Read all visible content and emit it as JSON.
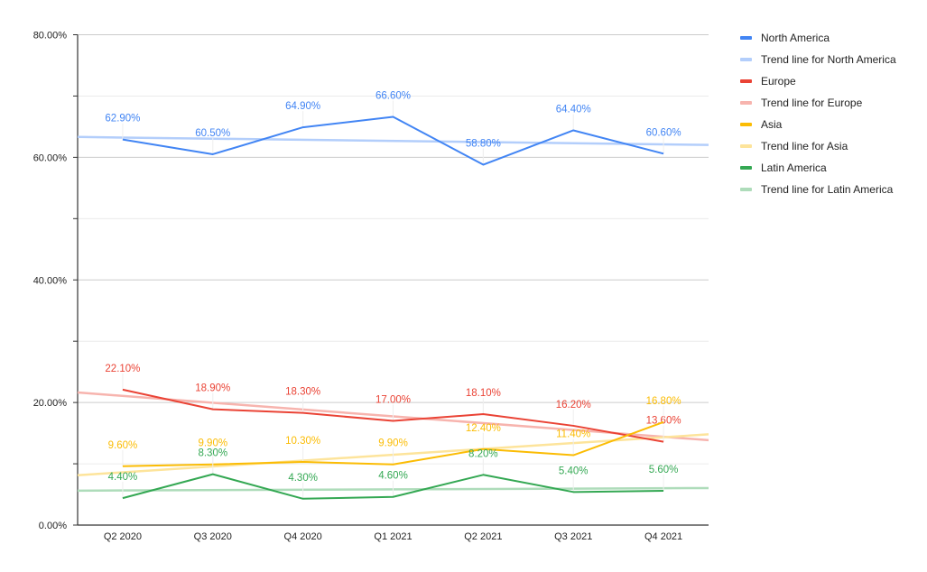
{
  "chart_data": {
    "type": "line",
    "title": "",
    "xlabel": "",
    "ylabel": "",
    "categories": [
      "Q2 2020",
      "Q3 2020",
      "Q4 2020",
      "Q1 2021",
      "Q2 2021",
      "Q3 2021",
      "Q4 2021"
    ],
    "ylim": [
      0,
      80
    ],
    "y_ticks": [
      0,
      20,
      40,
      60,
      80
    ],
    "y_tick_labels": [
      "0.00%",
      "20.00%",
      "40.00%",
      "60.00%",
      "80.00%"
    ],
    "minor_gridlines": [
      10,
      30,
      50,
      70
    ],
    "grid": true,
    "legend_position": "right",
    "data_labels": true,
    "series": [
      {
        "name": "North America",
        "color": "#4285f4",
        "values": [
          62.9,
          60.5,
          64.9,
          66.6,
          58.8,
          64.4,
          60.6
        ],
        "labels": [
          "62.90%",
          "60.50%",
          "64.90%",
          "66.60%",
          "58.80%",
          "64.40%",
          "60.60%"
        ]
      },
      {
        "name": "Europe",
        "color": "#ea4335",
        "values": [
          22.1,
          18.9,
          18.3,
          17.0,
          18.1,
          16.2,
          13.6
        ],
        "labels": [
          "22.10%",
          "18.90%",
          "18.30%",
          "17.00%",
          "18.10%",
          "16.20%",
          "13.60%"
        ]
      },
      {
        "name": "Asia",
        "color": "#fbbc04",
        "values": [
          9.6,
          9.9,
          10.3,
          9.9,
          12.4,
          11.4,
          16.8
        ],
        "labels": [
          "9.60%",
          "9.90%",
          "10.30%",
          "9.90%",
          "12.40%",
          "11.40%",
          "16.80%"
        ]
      },
      {
        "name": "Latin America",
        "color": "#34a853",
        "values": [
          4.4,
          8.3,
          4.3,
          4.6,
          8.2,
          5.4,
          5.6
        ],
        "labels": [
          "4.40%",
          "8.30%",
          "4.30%",
          "4.60%",
          "8.20%",
          "5.40%",
          "5.60%"
        ]
      }
    ],
    "trendlines": [
      {
        "name": "Trend line for North America",
        "of": "North America",
        "type": "linear",
        "color": "#b3cefb"
      },
      {
        "name": "Trend line for Europe",
        "of": "Europe",
        "type": "linear",
        "color": "#f7b4ae"
      },
      {
        "name": "Trend line for Asia",
        "of": "Asia",
        "type": "linear",
        "color": "#fde49b"
      },
      {
        "name": "Trend line for Latin America",
        "of": "Latin America",
        "type": "linear",
        "color": "#aedcba"
      }
    ]
  },
  "legend": [
    {
      "label": "North America",
      "color": "#4285f4"
    },
    {
      "label": "Trend line for North America",
      "color": "#b3cefb"
    },
    {
      "label": "Europe",
      "color": "#ea4335"
    },
    {
      "label": "Trend line for Europe",
      "color": "#f7b4ae"
    },
    {
      "label": "Asia",
      "color": "#fbbc04"
    },
    {
      "label": "Trend line for Asia",
      "color": "#fde49b"
    },
    {
      "label": "Latin America",
      "color": "#34a853"
    },
    {
      "label": "Trend line for Latin America",
      "color": "#aedcba"
    }
  ]
}
